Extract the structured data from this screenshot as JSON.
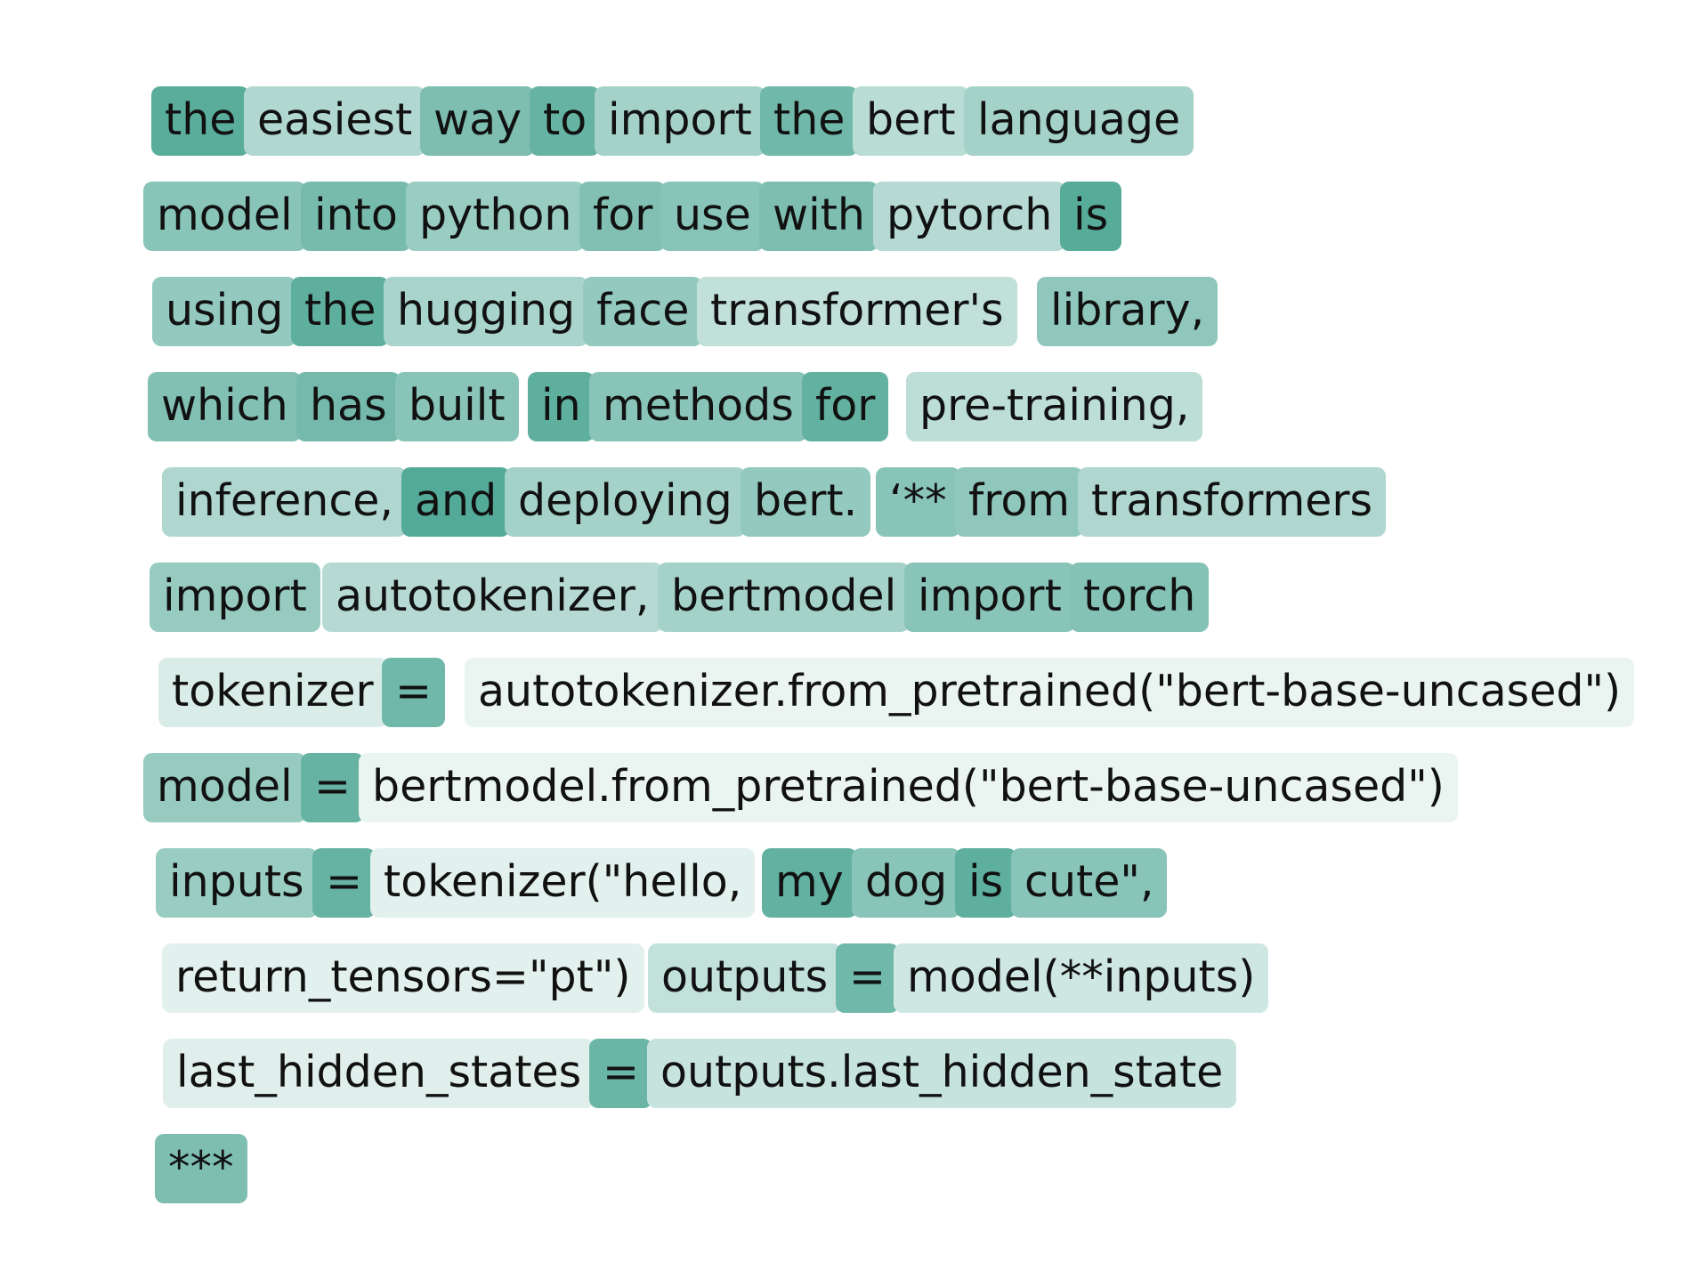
{
  "base_color": "#51a896",
  "lines": [
    {
      "tokens": [
        {
          "text": "the",
          "w": 0.95
        },
        {
          "text": "easiest",
          "w": 0.45
        },
        {
          "text": "way",
          "w": 0.75
        },
        {
          "text": "to",
          "w": 0.88
        },
        {
          "text": "import",
          "w": 0.52
        },
        {
          "text": "the",
          "w": 0.82
        },
        {
          "text": "bert",
          "w": 0.4
        },
        {
          "text": "language",
          "w": 0.52
        }
      ]
    },
    {
      "tokens": [
        {
          "text": "model",
          "w": 0.68
        },
        {
          "text": "into",
          "w": 0.78
        },
        {
          "text": "python",
          "w": 0.58
        },
        {
          "text": "for",
          "w": 0.72
        },
        {
          "text": "use",
          "w": 0.68
        },
        {
          "text": "with",
          "w": 0.75
        },
        {
          "text": "pytorch",
          "w": 0.42
        },
        {
          "text": "is",
          "w": 0.97
        }
      ]
    },
    {
      "tokens": [
        {
          "text": "using",
          "w": 0.62
        },
        {
          "text": "the",
          "w": 0.92
        },
        {
          "text": "hugging",
          "w": 0.5
        },
        {
          "text": "face",
          "w": 0.62
        },
        {
          "text": "transformer's",
          "w": 0.36
        },
        {
          "text": "library,",
          "w": 0.64
        }
      ]
    },
    {
      "tokens": [
        {
          "text": "which",
          "w": 0.72
        },
        {
          "text": "has",
          "w": 0.8
        },
        {
          "text": "built",
          "w": 0.68
        },
        {
          "text": "in",
          "w": 0.92
        },
        {
          "text": "methods",
          "w": 0.68
        },
        {
          "text": "for",
          "w": 0.9
        },
        {
          "text": "pre-training,",
          "w": 0.38
        }
      ]
    },
    {
      "tokens": [
        {
          "text": "inference,",
          "w": 0.46
        },
        {
          "text": "and",
          "w": 0.98
        },
        {
          "text": "deploying",
          "w": 0.52
        },
        {
          "text": "bert.",
          "w": 0.62
        },
        {
          "text": "‘**",
          "w": 0.68
        },
        {
          "text": "from",
          "w": 0.64
        },
        {
          "text": "transformers",
          "w": 0.46
        }
      ]
    },
    {
      "tokens": [
        {
          "text": "import",
          "w": 0.6
        },
        {
          "text": "autotokenizer,",
          "w": 0.42
        },
        {
          "text": "bertmodel",
          "w": 0.52
        },
        {
          "text": "import",
          "w": 0.68
        },
        {
          "text": "torch",
          "w": 0.7
        }
      ]
    },
    {
      "tokens": [
        {
          "text": "tokenizer",
          "w": 0.22
        },
        {
          "text": "=",
          "w": 0.82
        },
        {
          "text": "autotokenizer.from_pretrained(\"bert-base-uncased\")",
          "w": 0.12
        }
      ]
    },
    {
      "tokens": [
        {
          "text": "model",
          "w": 0.6
        },
        {
          "text": "=",
          "w": 0.88
        },
        {
          "text": "bertmodel.from_pretrained(\"bert-base-uncased\")",
          "w": 0.12
        }
      ]
    },
    {
      "tokens": [
        {
          "text": "inputs",
          "w": 0.58
        },
        {
          "text": "=",
          "w": 0.88
        },
        {
          "text": "tokenizer(\"hello,",
          "w": 0.16
        },
        {
          "text": "my",
          "w": 0.9
        },
        {
          "text": "dog",
          "w": 0.68
        },
        {
          "text": "is",
          "w": 0.92
        },
        {
          "text": "cute\",",
          "w": 0.68
        }
      ]
    },
    {
      "tokens": [
        {
          "text": "return_tensors=\"pt\")",
          "w": 0.16
        },
        {
          "text": "outputs",
          "w": 0.35
        },
        {
          "text": "=",
          "w": 0.82
        },
        {
          "text": "model(**inputs)",
          "w": 0.28
        }
      ]
    },
    {
      "tokens": [
        {
          "text": "last_hidden_states",
          "w": 0.18
        },
        {
          "text": "=",
          "w": 0.85
        },
        {
          "text": "outputs.last_hidden_state",
          "w": 0.32
        }
      ]
    },
    {
      "tokens": [
        {
          "text": "***",
          "w": 0.75
        }
      ]
    }
  ]
}
